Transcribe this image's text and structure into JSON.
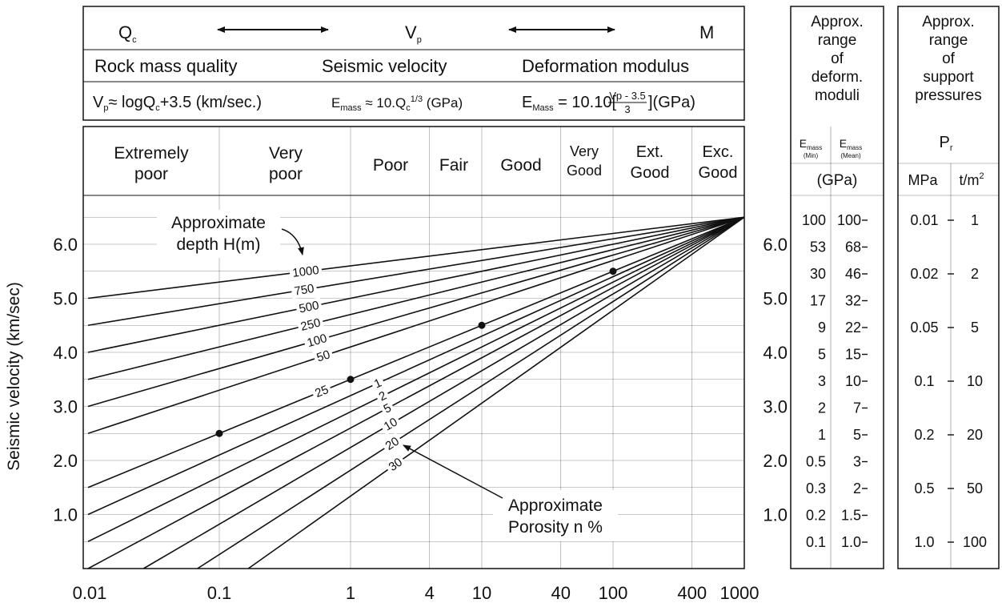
{
  "header": {
    "qc": "Q",
    "qc_sub": "c",
    "vp": "V",
    "vp_sub": "p",
    "m": "M",
    "rock_mass_quality": "Rock mass quality",
    "seismic_velocity": "Seismic velocity",
    "deformation_modulus": "Deformation modulus",
    "eq1": {
      "a": "V",
      "a_sub": "p",
      "b": "≈ logQ",
      "b_sub": "c",
      "c": "+3.5 (km/sec.)"
    },
    "eq2": {
      "a": "E",
      "a_sub": "mass",
      "b": " ≈ 10.Q",
      "b_sup_pre": "c",
      "c_sup": "1/3",
      "d": " (GPa)"
    },
    "eq3": {
      "a": "E",
      "a_sub": "Mass",
      "b": " = 10.10[",
      "num": "Vp - 3.5",
      "den": "3",
      "c": "](GPa)"
    }
  },
  "quality_classes": [
    {
      "line1": "Extremely",
      "line2": "poor"
    },
    {
      "line1": "Very",
      "line2": "poor"
    },
    {
      "line1": "",
      "line2": "Poor"
    },
    {
      "line1": "",
      "line2": "Fair"
    },
    {
      "line1": "",
      "line2": "Good"
    },
    {
      "line1": "Very",
      "line2": "Good"
    },
    {
      "line1": "Ext.",
      "line2": "Good"
    },
    {
      "line1": "Exc.",
      "line2": "Good"
    }
  ],
  "annotations": {
    "depth_label_1": "Approximate",
    "depth_label_2": "depth H(m)",
    "porosity_label_1": "Approximate",
    "porosity_label_2": "Porosity n %"
  },
  "moduli_table": {
    "title": [
      "Approx.",
      "range",
      "of",
      "deform.",
      "moduli"
    ],
    "col1_head": "E",
    "col1_sub": "mass",
    "col1_sub2": "(Min)",
    "col2_head": "E",
    "col2_sub": "mass",
    "col2_sub2": "(Mean)",
    "unit": "(GPa)",
    "min": [
      "100",
      "53",
      "30",
      "17",
      "9",
      "5",
      "3",
      "2",
      "1",
      "0.5",
      "0.3",
      "0.2",
      "0.1"
    ],
    "mean": [
      "100",
      "68",
      "46",
      "32",
      "22",
      "15",
      "10",
      "7",
      "5",
      "3",
      "2",
      "1.5",
      "1.0"
    ]
  },
  "support_table": {
    "title": [
      "Approx.",
      "range",
      "of",
      "support",
      "pressures"
    ],
    "symbol": "P",
    "symbol_sub": "r",
    "unit_mpa": "MPa",
    "unit_t": "t/m",
    "unit_t_sup": "2",
    "mpa": [
      "0.01",
      "0.02",
      "0.05",
      "0.1",
      "0.2",
      "0.5",
      "1.0"
    ],
    "tm2": [
      "1",
      "2",
      "5",
      "10",
      "20",
      "50",
      "100"
    ]
  },
  "chart_data": {
    "type": "line",
    "x_scale": "log",
    "xlim": [
      0.01,
      1000
    ],
    "ylim": [
      0,
      7.0
    ],
    "ylabel": "Seismic velocity (km/sec)",
    "x_ticks": [
      "0.01",
      "0.1",
      "1",
      "4",
      "10",
      "40",
      "100",
      "400",
      "1000"
    ],
    "x_tick_values": [
      0.01,
      0.1,
      1,
      4,
      10,
      40,
      100,
      400,
      1000
    ],
    "y_ticks": [
      "1.0",
      "2.0",
      "3.0",
      "4.0",
      "5.0",
      "6.0"
    ],
    "y_tick_values": [
      1,
      2,
      3,
      4,
      5,
      6
    ],
    "convergence_point": {
      "x": 1000,
      "y": 6.5
    },
    "depth_lines": [
      {
        "label": "1000",
        "y_at_0_01": 5.0
      },
      {
        "label": "750",
        "y_at_0_01": 4.5
      },
      {
        "label": "500",
        "y_at_0_01": 4.0
      },
      {
        "label": "250",
        "y_at_0_01": 3.5
      },
      {
        "label": "100",
        "y_at_0_01": 3.0
      },
      {
        "label": "50",
        "y_at_0_01": 2.5
      },
      {
        "label": "25",
        "y_at_0_01": 1.5
      }
    ],
    "porosity_lines": [
      {
        "label": "1",
        "y_at_0_01": 1.0
      },
      {
        "label": "2",
        "y_at_0_01": 0.5
      },
      {
        "label": "5",
        "y_at_0_01": 0.0
      },
      {
        "label": "10",
        "y_at_0_01": -0.6
      },
      {
        "label": "20",
        "y_at_0_01": -1.3
      },
      {
        "label": "30",
        "y_at_0_01": -2.1
      }
    ],
    "points": [
      {
        "x": 0.1,
        "y": 2.5
      },
      {
        "x": 1,
        "y": 3.5
      },
      {
        "x": 10,
        "y": 4.5
      },
      {
        "x": 100,
        "y": 5.5
      }
    ]
  }
}
